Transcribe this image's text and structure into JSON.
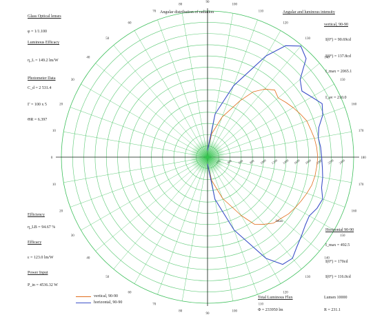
{
  "left_panel": {
    "heading": "Glass Optical lenses",
    "spec_line_1": "φ = 1/1.100",
    "luminous_efficacy_heading": "Luminous Efficacy",
    "luminous_efficacy_value": "η_L = 149.2 lm/W",
    "photometry_heading": "Photometer Data",
    "photometry_lines": [
      "C_d = 2 531.4",
      "Γ = 100 x 5",
      "ΘR = 6.397"
    ],
    "efficiency_heading": "Efficiency",
    "efficiency_value": "η_LB = 94.67 %",
    "efficacy_heading": "Efficacy",
    "efficacy_value": "ε = 123.0 lm/W",
    "power_heading": "Power Input",
    "power_value": "P_in = 4536.32 W"
  },
  "chart_title": "Angular distribution of radiation",
  "right_top_panel": {
    "heading": "Angular and luminous intensity",
    "subheading": "vertical, 90-90",
    "lines": [
      "I(0°) = 90.69cd",
      "I(0°) = 137.8cd",
      "I_max = 2065.1",
      "I_av = 210.0"
    ]
  },
  "right_bottom_panel": {
    "heading": "Horizontal 90-90",
    "lines": [
      "I_max = 492.5",
      "I(0°) = 170cd",
      "I(0°) = 116.0cd"
    ]
  },
  "flux_panel": {
    "heading": "Total Luminous Flux",
    "heading_value": "Lumen 10000",
    "flux_value": "Φ = 233950 lm",
    "ratio_value": "R = 231.1"
  },
  "legend": [
    {
      "label": "vertical, 90-90",
      "color": "#e06c1a"
    },
    {
      "label": "horizontal, 90-90",
      "color": "#3b4fc8"
    }
  ],
  "tooltip_marker": "Imax",
  "colors": {
    "grid": "#3cbf5a",
    "axis": "#1c1c1c",
    "series_vertical": "#e06c1a",
    "series_horizontal": "#3b4fc8",
    "center_glow": "#32c44c"
  },
  "chart_data": {
    "type": "polar-line",
    "title": "Angular distribution of radiation",
    "angle_ticks_deg": [
      0,
      10,
      20,
      30,
      40,
      50,
      60,
      70,
      80,
      90,
      100,
      110,
      120,
      130,
      140,
      150,
      160,
      170,
      180,
      190,
      200,
      210,
      220,
      230,
      240,
      250,
      260,
      270,
      280,
      290,
      300,
      310,
      320,
      330,
      340,
      350
    ],
    "angle_tick_labels": [
      "90",
      "100",
      "110",
      "120",
      "130",
      "140",
      "150",
      "160",
      "170",
      "180",
      "170",
      "160",
      "150",
      "140",
      "130",
      "120",
      "110",
      "100",
      "90",
      "80",
      "70",
      "60",
      "50",
      "40",
      "30",
      "20",
      "10",
      "0",
      "10",
      "20",
      "30",
      "40",
      "50",
      "60",
      "70",
      "80"
    ],
    "radial_ticks": [
      200,
      400,
      600,
      800,
      1000,
      1200,
      1400,
      1600,
      1800,
      2000,
      2200,
      2400
    ],
    "radial_max": 2600,
    "series": [
      {
        "name": "vertical, 90-90",
        "angles_deg": [
          -90,
          -80,
          -70,
          -60,
          -55,
          -50,
          -45,
          -40,
          -35,
          -30,
          -25,
          -20,
          -15,
          -10,
          -5,
          0,
          5,
          10,
          15,
          20,
          25,
          30,
          35,
          40,
          45,
          50,
          55,
          60,
          70,
          80,
          90
        ],
        "values": [
          120,
          420,
          760,
          1160,
          1420,
          1580,
          1690,
          1640,
          1700,
          1760,
          1820,
          1880,
          1900,
          1930,
          1950,
          1960,
          1950,
          1940,
          1920,
          1880,
          1840,
          1800,
          1760,
          1700,
          1660,
          1560,
          1460,
          1200,
          780,
          420,
          120
        ]
      },
      {
        "name": "horizontal, 90-90",
        "angles_deg": [
          -90,
          -80,
          -70,
          -60,
          -55,
          -50,
          -45,
          -40,
          -35,
          -30,
          -25,
          -20,
          -15,
          -10,
          -5,
          0,
          5,
          10,
          15,
          20,
          25,
          30,
          35,
          40,
          45,
          50,
          55,
          60,
          70,
          80,
          90
        ],
        "values": [
          120,
          780,
          1350,
          2080,
          2420,
          2580,
          2480,
          2150,
          2050,
          2140,
          2250,
          2180,
          2050,
          2000,
          2020,
          2030,
          2050,
          2080,
          2100,
          2180,
          2150,
          2090,
          2120,
          2180,
          2250,
          2350,
          2330,
          2080,
          1380,
          760,
          120
        ]
      }
    ]
  }
}
